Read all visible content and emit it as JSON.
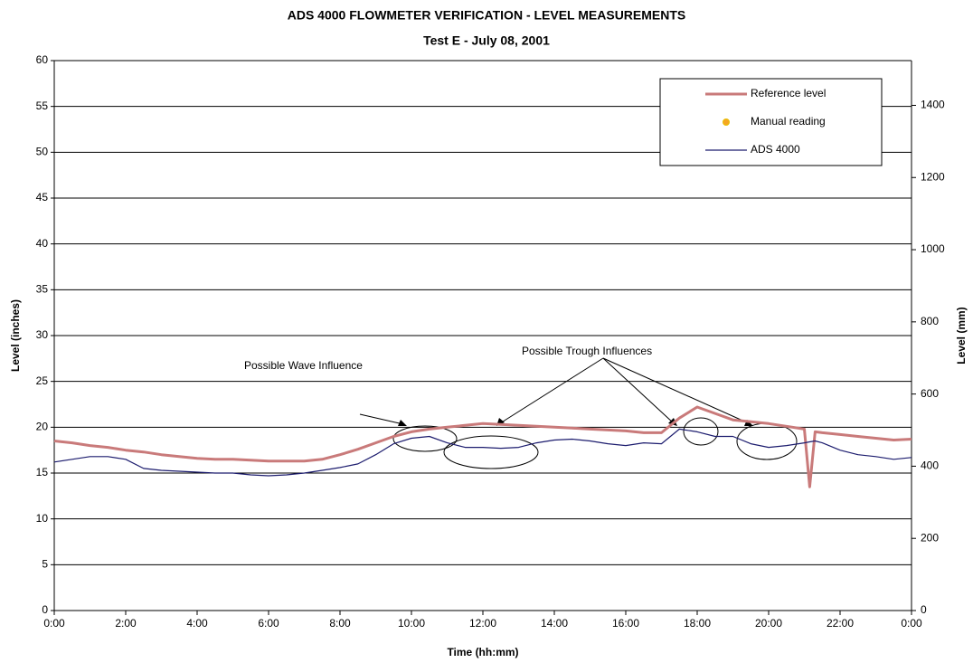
{
  "chart_data": {
    "type": "line",
    "title": "ADS 4000 FLOWMETER VERIFICATION - LEVEL MEASUREMENTS",
    "subtitle": "Test E  -  July 08, 2001",
    "x_label": "Time (hh:mm)",
    "y_label": "Level (inches)",
    "y2_label": "Level (mm)",
    "annotations": [
      "Possible Wave Influence",
      "Possible Trough Influences"
    ],
    "x": [
      0,
      0.5,
      1,
      1.5,
      2,
      2.5,
      3,
      3.5,
      4,
      4.5,
      5,
      5.5,
      6,
      6.5,
      7,
      7.5,
      8,
      8.5,
      9,
      9.5,
      10,
      10.5,
      11,
      11.5,
      12,
      12.5,
      13,
      13.5,
      14,
      14.5,
      15,
      15.5,
      16,
      16.5,
      17,
      17.5,
      18,
      18.5,
      19,
      19.5,
      20,
      20.5,
      21,
      21.15,
      21.3,
      21.5,
      22,
      22.5,
      23,
      23.5,
      24
    ],
    "xlim": [
      0,
      24
    ],
    "xticks": [
      {
        "value": 0,
        "label": "0:00"
      },
      {
        "value": 2,
        "label": "2:00"
      },
      {
        "value": 4,
        "label": "4:00"
      },
      {
        "value": 6,
        "label": "6:00"
      },
      {
        "value": 8,
        "label": "8:00"
      },
      {
        "value": 10,
        "label": "10:00"
      },
      {
        "value": 12,
        "label": "12:00"
      },
      {
        "value": 14,
        "label": "14:00"
      },
      {
        "value": 16,
        "label": "16:00"
      },
      {
        "value": 18,
        "label": "18:00"
      },
      {
        "value": 20,
        "label": "20:00"
      },
      {
        "value": 22,
        "label": "22:00"
      },
      {
        "value": 24,
        "label": "0:00"
      }
    ],
    "ylim": [
      0,
      60
    ],
    "yticks": [
      0,
      5,
      10,
      15,
      20,
      25,
      30,
      35,
      40,
      45,
      50,
      55,
      60
    ],
    "y2lim": [
      0,
      1524
    ],
    "y2ticks": [
      0,
      200,
      400,
      600,
      800,
      1000,
      1200,
      1400
    ],
    "grid": true,
    "legend": "top-right",
    "series": [
      {
        "name": "Reference level",
        "color": "#c97a7a",
        "values": [
          18.5,
          18.3,
          18,
          17.8,
          17.5,
          17.3,
          17,
          16.8,
          16.6,
          16.5,
          16.5,
          16.4,
          16.3,
          16.3,
          16.3,
          16.5,
          17,
          17.6,
          18.3,
          19,
          19.5,
          19.8,
          20,
          20.2,
          20.4,
          20.3,
          20.2,
          20.1,
          20,
          19.9,
          19.8,
          19.7,
          19.6,
          19.4,
          19.4,
          21,
          22.2,
          21.5,
          20.8,
          20.6,
          20.4,
          20.1,
          19.8,
          13.5,
          19.5,
          19.4,
          19.2,
          19,
          18.8,
          18.6,
          18.7
        ]
      },
      {
        "name": "Manual reading",
        "color": "#f5a623",
        "values": [
          null,
          null,
          null,
          null,
          null,
          null,
          null,
          null,
          null,
          null,
          null,
          null,
          null,
          null,
          null,
          null,
          null,
          null,
          null,
          null,
          null,
          null,
          null,
          null,
          null,
          null,
          null,
          null,
          null,
          null,
          null,
          null,
          null,
          null,
          null,
          null,
          null,
          null,
          null,
          null,
          null,
          null,
          null,
          null,
          null,
          null,
          null,
          null,
          null,
          null,
          null
        ]
      },
      {
        "name": "ADS 4000",
        "color": "#1c1c6e",
        "values": [
          16.2,
          16.5,
          16.8,
          16.8,
          16.5,
          15.5,
          15.3,
          15.2,
          15.1,
          15.0,
          15.0,
          14.8,
          14.7,
          14.8,
          15.0,
          15.3,
          15.6,
          16.0,
          17.0,
          18.2,
          18.8,
          19.0,
          18.3,
          17.8,
          17.8,
          17.7,
          17.8,
          18.3,
          18.6,
          18.7,
          18.5,
          18.2,
          18.0,
          18.3,
          18.2,
          19.8,
          19.5,
          19.0,
          19.0,
          18.2,
          17.8,
          18.0,
          18.3,
          18.4,
          18.5,
          18.3,
          17.5,
          17.0,
          16.8,
          16.5,
          16.7
        ]
      }
    ]
  }
}
